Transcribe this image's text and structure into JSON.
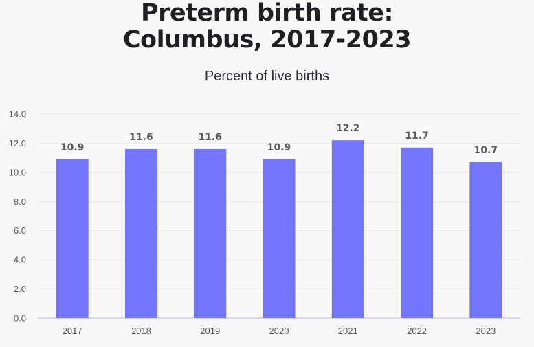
{
  "chart_data": {
    "type": "bar",
    "title": "Preterm birth rate: Columbus, 2017-2023",
    "title_lines": [
      "Preterm birth rate:",
      "Columbus, 2017-2023"
    ],
    "subtitle": "Percent of live births",
    "xlabel": "",
    "ylabel": "",
    "categories": [
      "2017",
      "2018",
      "2019",
      "2020",
      "2021",
      "2022",
      "2023"
    ],
    "values": [
      10.9,
      11.6,
      11.6,
      10.9,
      12.2,
      11.7,
      10.7
    ],
    "data_labels": [
      "10.9",
      "11.6",
      "11.6",
      "10.9",
      "12.2",
      "11.7",
      "10.7"
    ],
    "ylim": [
      0,
      14
    ],
    "yticks": [
      "0.0",
      "2.0",
      "4.0",
      "6.0",
      "8.0",
      "10.0",
      "12.0",
      "14.0"
    ],
    "grid": true,
    "legend": "none",
    "colors": {
      "bar": "#7375fd",
      "background": "#f8f8f8",
      "grid": "#e6e6e6"
    }
  }
}
